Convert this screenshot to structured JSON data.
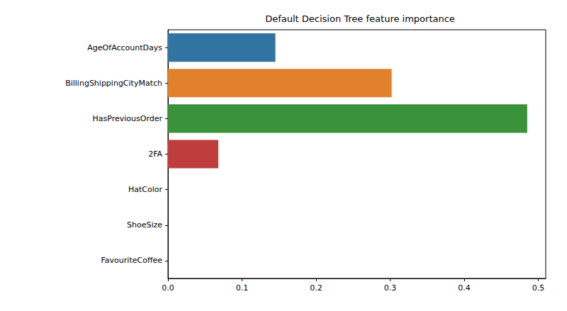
{
  "chart_data": {
    "type": "bar",
    "orientation": "horizontal",
    "title": "Default Decision Tree feature importance",
    "categories": [
      "AgeOfAccountDays",
      "BillingShippingCityMatch",
      "HasPreviousOrder",
      "2FA",
      "HatColor",
      "ShoeSize",
      "FavouriteCoffee"
    ],
    "values": [
      0.145,
      0.302,
      0.485,
      0.068,
      0,
      0,
      0
    ],
    "colors": [
      "#3274a1",
      "#e1812c",
      "#3a923a",
      "#c03d3e",
      "#9372b2",
      "#845b53",
      "#d684bd"
    ],
    "xlim": [
      0,
      0.51
    ],
    "xticks": [
      {
        "value": 0,
        "label": "0.0"
      },
      {
        "value": 0.1,
        "label": "0.1"
      },
      {
        "value": 0.2,
        "label": "0.2"
      },
      {
        "value": 0.3,
        "label": "0.3"
      },
      {
        "value": 0.4,
        "label": "0.4"
      },
      {
        "value": 0.5,
        "label": "0.5"
      }
    ],
    "grid": false
  }
}
